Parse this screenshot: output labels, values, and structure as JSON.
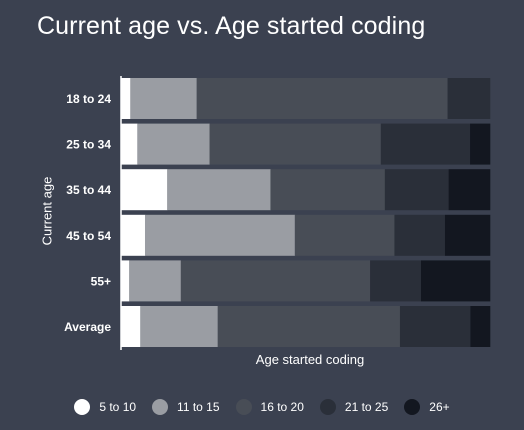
{
  "title": "Current age vs. Age started coding",
  "chart_data": {
    "type": "bar",
    "orientation": "horizontal",
    "stacked": true,
    "normalized_percent": true,
    "title": "Current age vs. Age started coding",
    "xlabel": "Age started coding",
    "ylabel": "Current age",
    "categories": [
      "18 to 24",
      "25 to 34",
      "35 to 44",
      "45 to 54",
      "55+",
      "Average"
    ],
    "series": [
      {
        "name": "5 to 10",
        "color": "#ffffff",
        "values": [
          2.5,
          4.4,
          12.5,
          6.5,
          2.2,
          5.2
        ]
      },
      {
        "name": "11 to 15",
        "color": "#9a9da3",
        "values": [
          18.0,
          19.6,
          28.0,
          40.6,
          14.0,
          21.0
        ]
      },
      {
        "name": "16 to 20",
        "color": "#484d56",
        "values": [
          68.0,
          46.4,
          31.0,
          27.0,
          51.3,
          49.4
        ]
      },
      {
        "name": "21 to 25",
        "color": "#2a2f39",
        "values": [
          11.5,
          24.2,
          17.3,
          13.7,
          13.8,
          19.1
        ]
      },
      {
        "name": "26+",
        "color": "#131720",
        "values": [
          0.0,
          5.4,
          11.2,
          12.2,
          18.7,
          5.3
        ]
      }
    ],
    "xlim": [
      0,
      100
    ],
    "grid": false,
    "legend_position": "bottom"
  }
}
